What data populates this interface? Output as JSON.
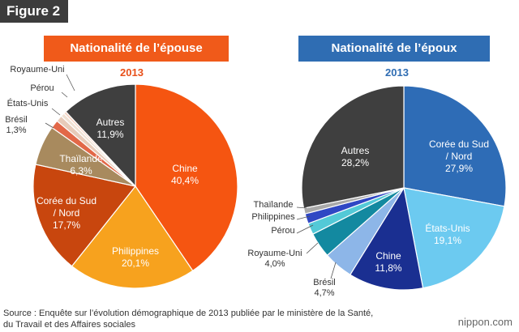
{
  "figure_label": "Figure 2",
  "source": {
    "line1": "Source : Enquête sur l’évolution démographique de 2013 publiée par le ministère de la Santé,",
    "line2": "du Travail et des Affaires sociales"
  },
  "logo": "nippon.com",
  "chart_data": [
    {
      "type": "pie",
      "title": "Nationalité de l’épouse",
      "subtitle": "2013",
      "colors": {
        "header": "#f05a1a",
        "year": "#e8501a"
      },
      "slices": [
        {
          "label": "Chine",
          "value": 40.4,
          "value_label": "40,4%",
          "color": "#f55511"
        },
        {
          "label": "Philippines",
          "value": 20.1,
          "value_label": "20,1%",
          "color": "#f7a21e"
        },
        {
          "label": "Corée du Sud / Nord",
          "value": 17.7,
          "value_label": "17,7%",
          "color": "#c8460e"
        },
        {
          "label": "Thaïlande",
          "value": 6.3,
          "value_label": "6,3%",
          "color": "#a88a5e"
        },
        {
          "label": "Brésil",
          "value": 1.3,
          "value_label": "1,3%",
          "color": "#e26848"
        },
        {
          "label": "États-Unis",
          "value": 1.0,
          "value_label": "",
          "color": "#e7cbb9"
        },
        {
          "label": "Pérou",
          "value": 0.6,
          "value_label": "",
          "color": "#f0e1d3"
        },
        {
          "label": "Royaume-Uni",
          "value": 0.4,
          "value_label": "",
          "color": "#f6d4c4"
        },
        {
          "label": "Autres",
          "value": 11.9,
          "value_label": "11,9%",
          "color": "#3f3f3f"
        }
      ]
    },
    {
      "type": "pie",
      "title": "Nationalité de l’époux",
      "subtitle": "2013",
      "colors": {
        "header": "#2f6db3",
        "year": "#2f6db3"
      },
      "slices": [
        {
          "label": "Corée du Sud / Nord",
          "value": 27.9,
          "value_label": "27,9%",
          "color": "#2e6cb6"
        },
        {
          "label": "États-Unis",
          "value": 19.1,
          "value_label": "19,1%",
          "color": "#6ccaf0"
        },
        {
          "label": "Chine",
          "value": 11.8,
          "value_label": "11,8%",
          "color": "#1a2f91"
        },
        {
          "label": "Brésil",
          "value": 4.7,
          "value_label": "4,7%",
          "color": "#8db6e8"
        },
        {
          "label": "Royaume-Uni",
          "value": 4.0,
          "value_label": "4,0%",
          "color": "#1389a0"
        },
        {
          "label": "Pérou",
          "value": 1.8,
          "value_label": "",
          "color": "#53c9d7"
        },
        {
          "label": "Philippines",
          "value": 1.6,
          "value_label": "",
          "color": "#2f47c4"
        },
        {
          "label": "Thaïlande",
          "value": 0.9,
          "value_label": "",
          "color": "#a9a9a9"
        },
        {
          "label": "Autres",
          "value": 28.2,
          "value_label": "28,2%",
          "color": "#3f3f3f"
        }
      ]
    }
  ]
}
